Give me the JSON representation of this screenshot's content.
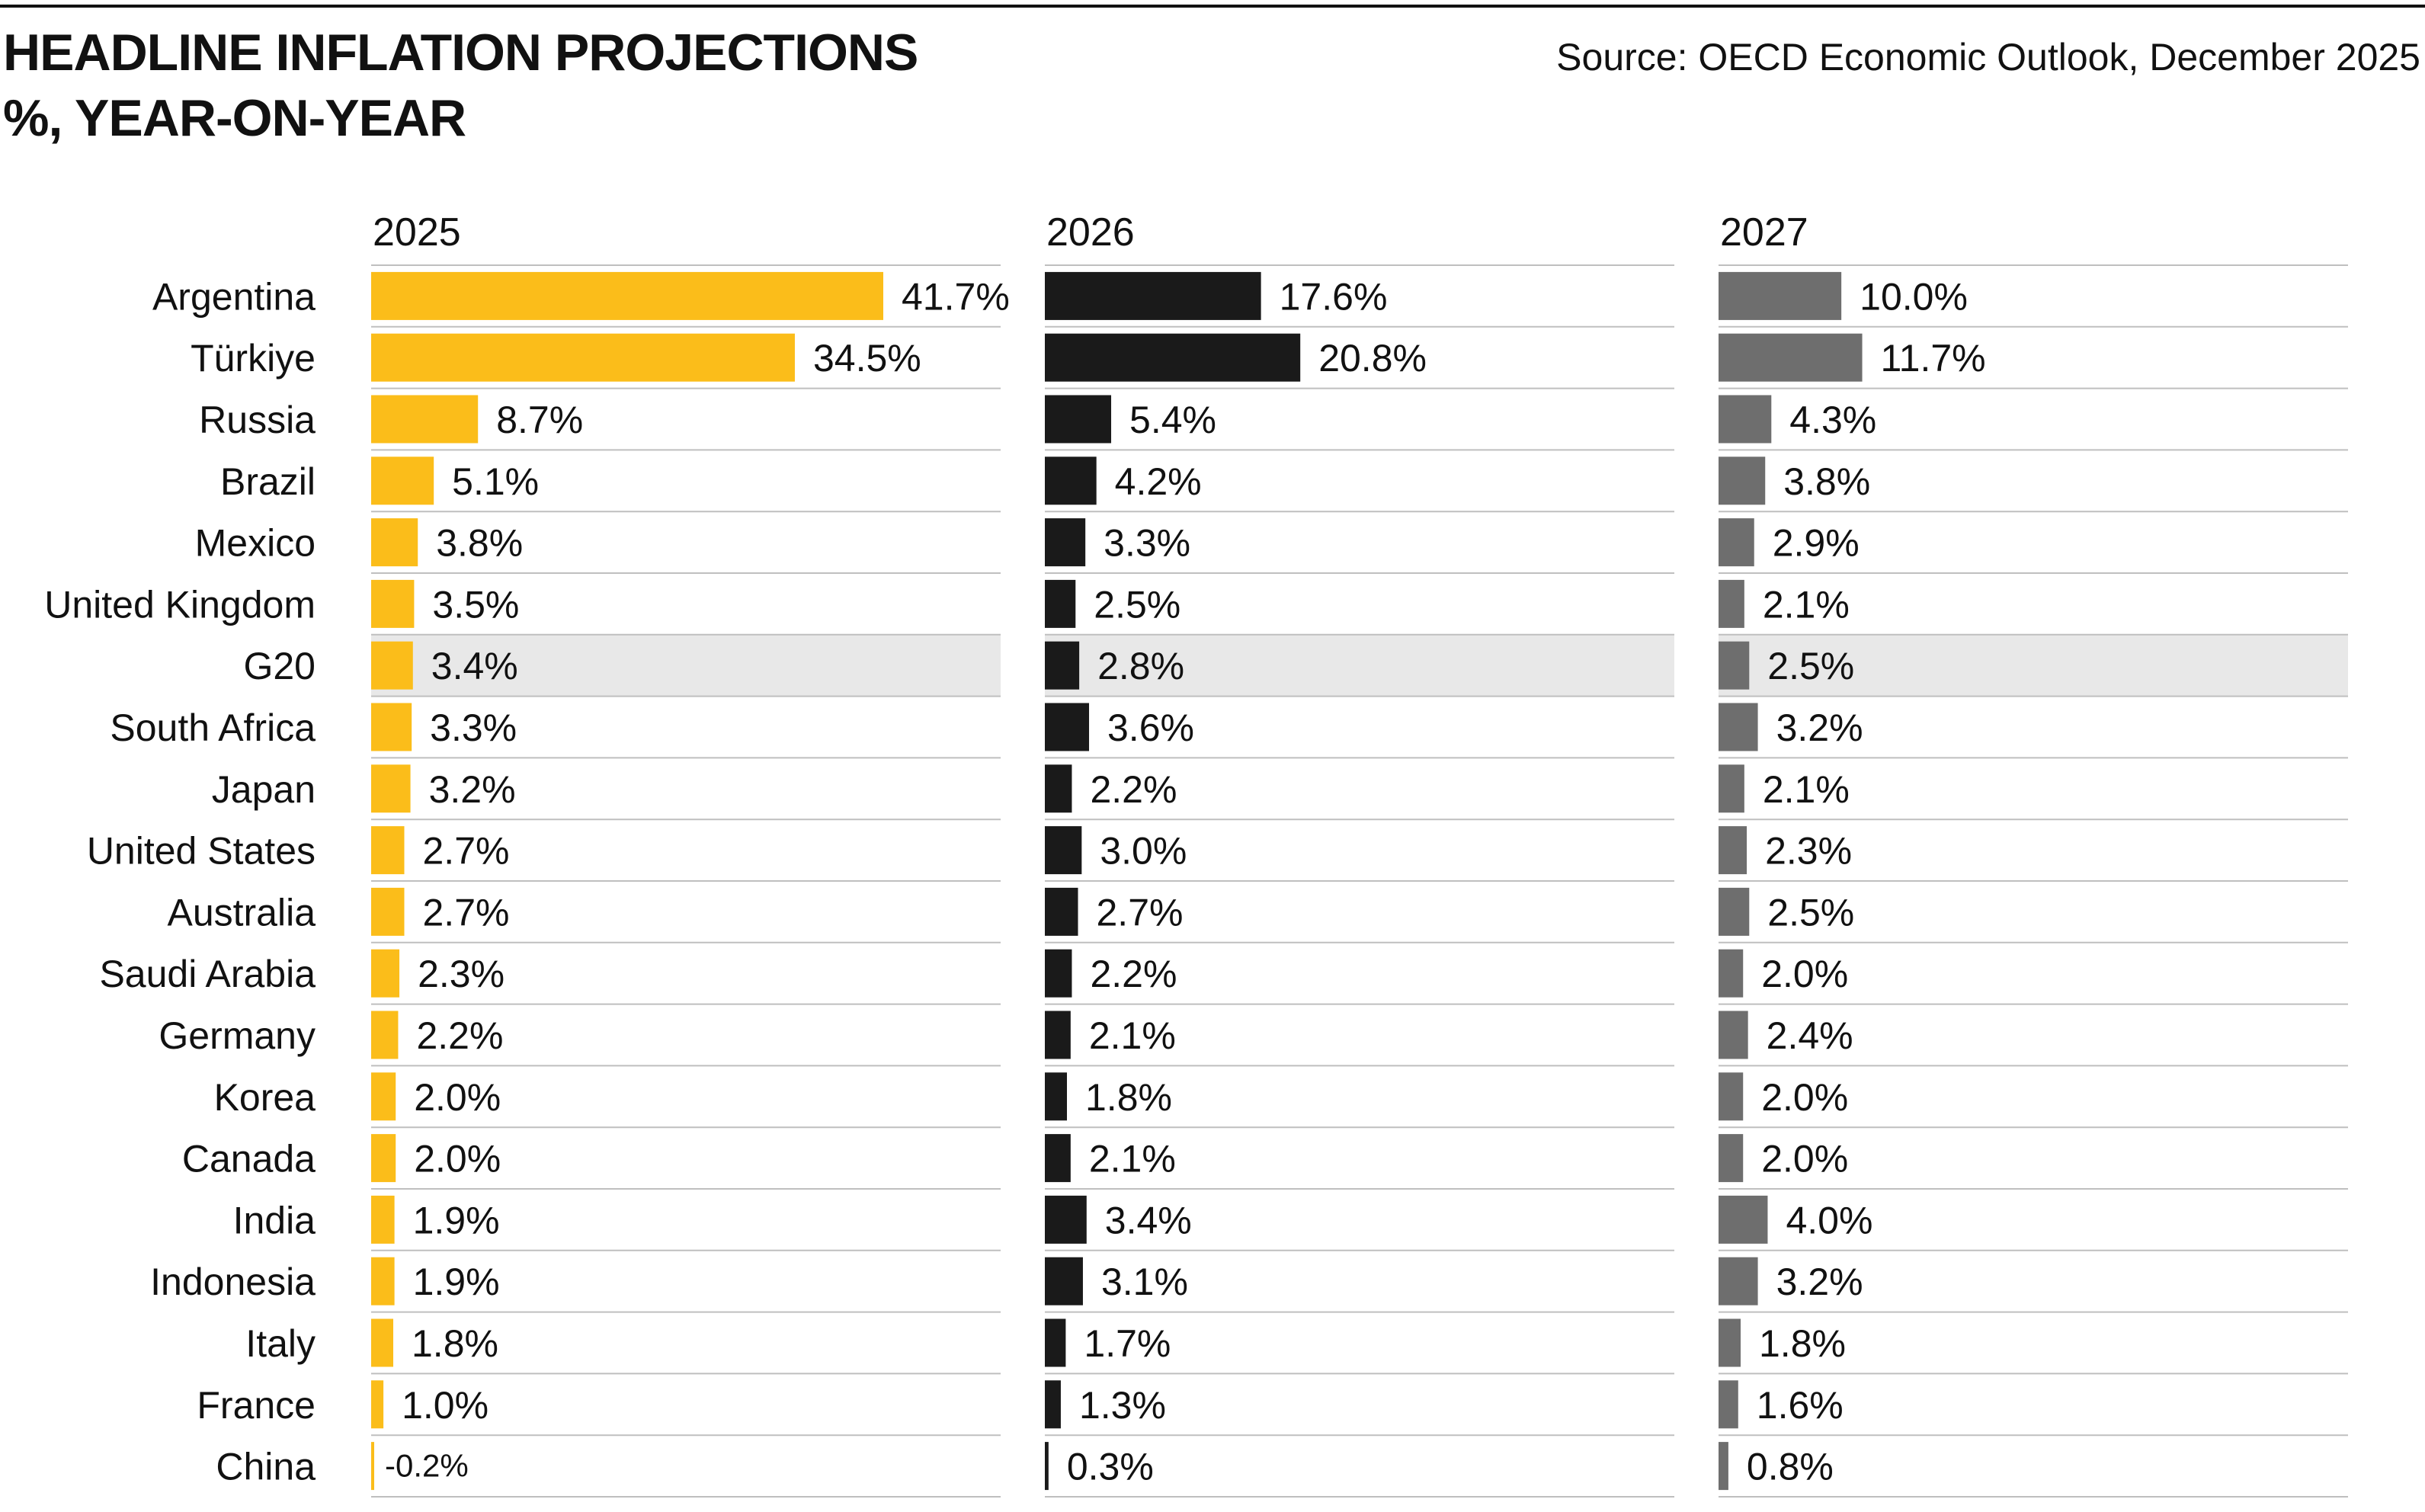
{
  "header": {
    "title_line1": "HEADLINE INFLATION PROJECTIONS",
    "title_line2": "%, YEAR-ON-YEAR",
    "source": "Source: OECD Economic Outlook, December 2025"
  },
  "colors": {
    "series_2025": "#FBBD1A",
    "series_2026": "#1A1A1A",
    "series_2027": "#6E6E6E",
    "highlight_row": "#E8E8E8",
    "gridline": "#BFBFBF"
  },
  "chart_data": {
    "type": "bar",
    "orientation": "horizontal",
    "categories": [
      "Argentina",
      "Türkiye",
      "Russia",
      "Brazil",
      "Mexico",
      "United Kingdom",
      "G20",
      "South Africa",
      "Japan",
      "United States",
      "Australia",
      "Saudi Arabia",
      "Germany",
      "Korea",
      "Canada",
      "India",
      "Indonesia",
      "Italy",
      "France",
      "China"
    ],
    "highlight_category": "G20",
    "series": [
      {
        "name": "2025",
        "values": [
          41.7,
          34.5,
          8.7,
          5.1,
          3.8,
          3.5,
          3.4,
          3.3,
          3.2,
          2.7,
          2.7,
          2.3,
          2.2,
          2.0,
          2.0,
          1.9,
          1.9,
          1.8,
          1.0,
          -0.2
        ],
        "labels": [
          "41.7%",
          "34.5%",
          "8.7%",
          "5.1%",
          "3.8%",
          "3.5%",
          "3.4%",
          "3.3%",
          "3.2%",
          "2.7%",
          "2.7%",
          "2.3%",
          "2.2%",
          "2.0%",
          "2.0%",
          "1.9%",
          "1.9%",
          "1.8%",
          "1.0%",
          "-0.2%"
        ]
      },
      {
        "name": "2026",
        "values": [
          17.6,
          20.8,
          5.4,
          4.2,
          3.3,
          2.5,
          2.8,
          3.6,
          2.2,
          3.0,
          2.7,
          2.2,
          2.1,
          1.8,
          2.1,
          3.4,
          3.1,
          1.7,
          1.3,
          0.3
        ],
        "labels": [
          "17.6%",
          "20.8%",
          "5.4%",
          "4.2%",
          "3.3%",
          "2.5%",
          "2.8%",
          "3.6%",
          "2.2%",
          "3.0%",
          "2.7%",
          "2.2%",
          "2.1%",
          "1.8%",
          "2.1%",
          "3.4%",
          "3.1%",
          "1.7%",
          "1.3%",
          "0.3%"
        ]
      },
      {
        "name": "2027",
        "values": [
          10.0,
          11.7,
          4.3,
          3.8,
          2.9,
          2.1,
          2.5,
          3.2,
          2.1,
          2.3,
          2.5,
          2.0,
          2.4,
          2.0,
          2.0,
          4.0,
          3.2,
          1.8,
          1.6,
          0.8
        ],
        "labels": [
          "10.0%",
          "11.7%",
          "4.3%",
          "3.8%",
          "2.9%",
          "2.1%",
          "2.5%",
          "3.2%",
          "2.1%",
          "2.3%",
          "2.5%",
          "2.0%",
          "2.4%",
          "2.0%",
          "2.0%",
          "4.0%",
          "3.2%",
          "1.8%",
          "1.6%",
          "0.8%"
        ]
      }
    ],
    "xlim": [
      0,
      41.7
    ],
    "grid": false,
    "legend": "none"
  }
}
